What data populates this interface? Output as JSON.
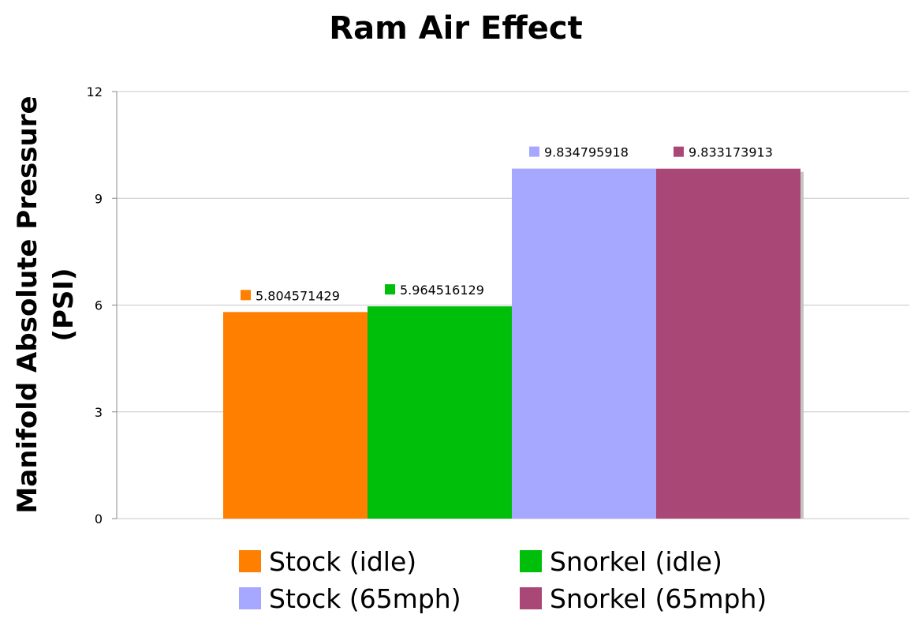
{
  "chart_data": {
    "type": "bar",
    "title": "Ram Air Effect",
    "ylabel": "Manifold Absolute Pressure (PSI)",
    "ylabel_lines": [
      "Manifold Absolute Pressure",
      "(PSI)"
    ],
    "xlabel": "",
    "ylim": [
      0,
      12
    ],
    "yticks": [
      0,
      3,
      6,
      9,
      12
    ],
    "grid": true,
    "legend_position": "bottom",
    "series": [
      {
        "name": "Stock (idle)",
        "value": 5.804571429,
        "label": "5.804571429",
        "color": "#ff7f00"
      },
      {
        "name": "Snorkel (idle)",
        "value": 5.964516129,
        "label": "5.964516129",
        "color": "#00bf0a"
      },
      {
        "name": "Stock (65mph)",
        "value": 9.834795918,
        "label": "9.834795918",
        "color": "#a6a8ff"
      },
      {
        "name": "Snorkel (65mph)",
        "value": 9.833173913,
        "label": "9.833173913",
        "color": "#a94777"
      }
    ]
  }
}
